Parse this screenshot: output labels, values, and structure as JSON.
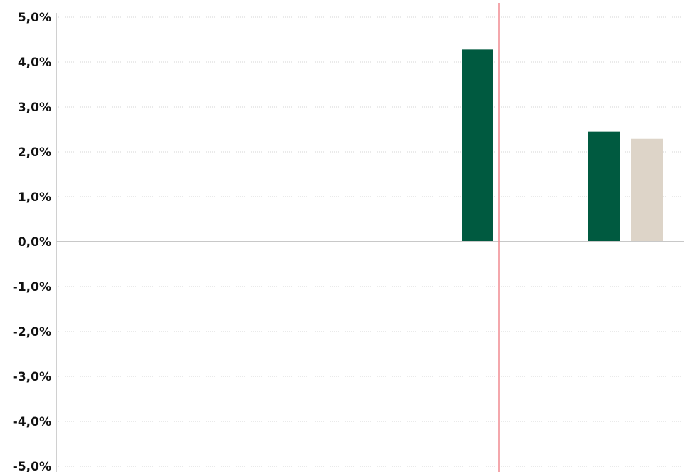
{
  "chart_data": {
    "type": "bar",
    "y_tick_labels": [
      "5,0%",
      "4,0%",
      "3,0%",
      "2,0%",
      "1,0%",
      "0,0%",
      "-1,0%",
      "-2,0%",
      "-3,0%",
      "-4,0%",
      "-5,0%"
    ],
    "ylim": [
      -5,
      5
    ],
    "y_tick_values": [
      5,
      4,
      3,
      2,
      1,
      0,
      -1,
      -2,
      -3,
      -4,
      -5
    ],
    "grid": true,
    "bars": [
      {
        "value": 4.28,
        "color": "#005a40"
      },
      {
        "value": 2.45,
        "color": "#005a40"
      },
      {
        "value": 2.29,
        "color": "#ddd4c8"
      }
    ],
    "vertical_marker": {
      "color": "#f08a90"
    }
  }
}
